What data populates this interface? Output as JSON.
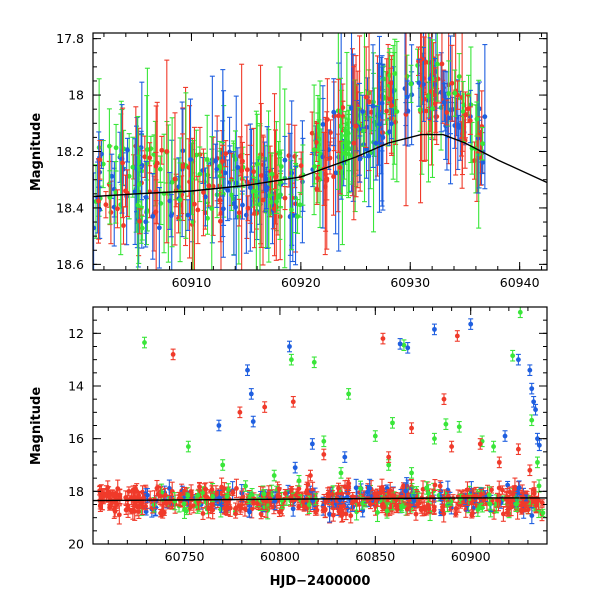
{
  "chart_data": [
    {
      "id": "top",
      "type": "scatter",
      "title": "",
      "xlabel": "",
      "ylabel": "Magnitude",
      "xlim": [
        60901,
        60942.5
      ],
      "ylim": [
        17.78,
        18.62
      ],
      "y_inverted": true,
      "x_ticks": [
        60910,
        60920,
        60930,
        60940
      ],
      "x_ticks_labels": [
        "60910",
        "60920",
        "60930",
        "60940"
      ],
      "y_ticks": [
        17.8,
        18,
        18.2,
        18.4,
        18.6
      ],
      "y_ticks_labels": [
        "17.8",
        "18",
        "18.2",
        "18.4",
        "18.6"
      ],
      "grid": false,
      "legend": "none",
      "colors": {
        "blue": "#1f5fe0",
        "green": "#39e639",
        "red": "#f03a2a"
      },
      "trend_curve": {
        "color": "#000000",
        "x": [
          60901,
          60905,
          60910,
          60915,
          60920,
          60925,
          60928,
          60931,
          60933,
          60935,
          60938,
          60942.5
        ],
        "y": [
          18.36,
          18.35,
          18.34,
          18.32,
          18.29,
          18.22,
          18.17,
          18.14,
          18.14,
          18.17,
          18.23,
          18.31
        ]
      },
      "band": {
        "x": [
          60901,
          60905,
          60910,
          60915,
          60920,
          60921,
          60923,
          60925,
          60927,
          60929,
          60931,
          60933,
          60935,
          60936,
          60937.2
        ],
        "y_lo": [
          18.5,
          18.48,
          18.46,
          18.45,
          18.43,
          18.38,
          18.3,
          18.25,
          18.2,
          18.12,
          18.08,
          18.1,
          18.18,
          18.25,
          18.32
        ],
        "y_hi": [
          18.17,
          18.18,
          18.2,
          18.2,
          18.2,
          18.13,
          18.06,
          18.02,
          17.96,
          17.88,
          17.85,
          17.88,
          17.95,
          18.02,
          18.1
        ],
        "gaps": [
          [
            60920.2,
            60921.0
          ],
          [
            60929.0,
            60929.5
          ]
        ]
      }
    },
    {
      "id": "bottom",
      "type": "scatter",
      "title": "",
      "xlabel": "HJD−2400000",
      "ylabel": "Magnitude",
      "xlim": [
        60702,
        60940
      ],
      "ylim": [
        11.0,
        20.0
      ],
      "y_inverted": true,
      "x_ticks": [
        60750,
        60800,
        60850,
        60900
      ],
      "x_ticks_labels": [
        "60750",
        "60800",
        "60850",
        "60900"
      ],
      "y_ticks": [
        12,
        14,
        16,
        18,
        20
      ],
      "y_ticks_labels": [
        "12",
        "14",
        "16",
        "18",
        "20"
      ],
      "grid": false,
      "legend": "none",
      "colors": {
        "blue": "#1f5fe0",
        "green": "#39e639",
        "red": "#f03a2a"
      },
      "trend_curve": {
        "color": "#000000",
        "x": [
          60702,
          60800,
          60900,
          60940
        ],
        "y": [
          18.35,
          18.3,
          18.25,
          18.25
        ]
      },
      "base_band": {
        "x_start": 60705,
        "x_end": 60938,
        "center": 18.35,
        "spread": 0.45
      },
      "outliers": {
        "green": [
          [
            60729,
            12.35
          ],
          [
            60752,
            16.3
          ],
          [
            60770,
            17.0
          ],
          [
            60782,
            17.8
          ],
          [
            60797,
            17.4
          ],
          [
            60806,
            13.0
          ],
          [
            60810,
            17.6
          ],
          [
            60818,
            13.1
          ],
          [
            60823,
            16.1
          ],
          [
            60832,
            17.3
          ],
          [
            60836,
            14.3
          ],
          [
            60850,
            15.9
          ],
          [
            60857,
            17.0
          ],
          [
            60859,
            15.4
          ],
          [
            60865,
            12.45
          ],
          [
            60869,
            17.3
          ],
          [
            60881,
            16.0
          ],
          [
            60887,
            15.45
          ],
          [
            60894,
            15.55
          ],
          [
            60906,
            16.1
          ],
          [
            60912,
            16.3
          ],
          [
            60922,
            12.85
          ],
          [
            60926,
            11.2
          ],
          [
            60932,
            15.3
          ],
          [
            60935,
            16.9
          ]
        ],
        "red": [
          [
            60744,
            12.8
          ],
          [
            60779,
            15.0
          ],
          [
            60792,
            14.8
          ],
          [
            60807,
            14.6
          ],
          [
            60816,
            17.4
          ],
          [
            60823,
            16.6
          ],
          [
            60836,
            17.7
          ],
          [
            60854,
            12.2
          ],
          [
            60857,
            16.7
          ],
          [
            60869,
            15.6
          ],
          [
            60884,
            17.8
          ],
          [
            60886,
            14.5
          ],
          [
            60890,
            16.3
          ],
          [
            60893,
            12.1
          ],
          [
            60905,
            16.2
          ],
          [
            60915,
            16.9
          ],
          [
            60925,
            16.4
          ],
          [
            60931,
            17.2
          ]
        ],
        "blue": [
          [
            60768,
            15.5
          ],
          [
            60783,
            13.4
          ],
          [
            60785,
            14.3
          ],
          [
            60786,
            15.35
          ],
          [
            60805,
            12.5
          ],
          [
            60808,
            17.1
          ],
          [
            60817,
            16.2
          ],
          [
            60834,
            16.7
          ],
          [
            60863,
            12.4
          ],
          [
            60867,
            12.55
          ],
          [
            60881,
            11.85
          ],
          [
            60900,
            11.65
          ],
          [
            60918,
            15.9
          ],
          [
            60925,
            13.0
          ],
          [
            60931,
            13.4
          ],
          [
            60932,
            14.1
          ],
          [
            60933,
            14.6
          ],
          [
            60934,
            14.9
          ],
          [
            60935,
            16.0
          ],
          [
            60936,
            16.25
          ]
        ]
      }
    }
  ]
}
